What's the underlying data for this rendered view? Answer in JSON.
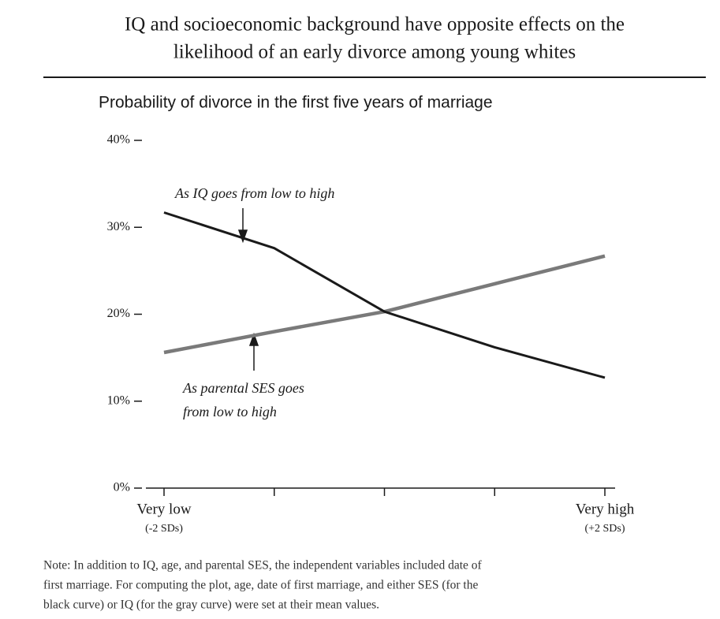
{
  "chart_data": {
    "type": "line",
    "title": [
      "IQ and socioeconomic background have opposite effects on the",
      "likelihood of an early divorce among young whites"
    ],
    "subtitle": "Probability of divorce in the first five years of marriage",
    "x": [
      -2,
      -1,
      0,
      1,
      2
    ],
    "xlim": [
      -2,
      2
    ],
    "xticks": [
      {
        "value": -2,
        "label": "Very low",
        "sublabel": "(-2 SDs)"
      },
      {
        "value": -1,
        "label": null
      },
      {
        "value": 0,
        "label": null
      },
      {
        "value": 1,
        "label": null
      },
      {
        "value": 2,
        "label": "Very high",
        "sublabel": "(+2 SDs)"
      }
    ],
    "ylim": [
      0,
      40
    ],
    "yticks": [
      {
        "value": 0,
        "label": "0%"
      },
      {
        "value": 10,
        "label": "10%"
      },
      {
        "value": 20,
        "label": "20%"
      },
      {
        "value": 30,
        "label": "30%"
      },
      {
        "value": 40,
        "label": "40%"
      }
    ],
    "series": [
      {
        "name": "As IQ goes from low to high",
        "color": "#1a1a1a",
        "values": [
          31.7,
          27.6,
          20.3,
          16.2,
          12.7
        ]
      },
      {
        "name": [
          "As parental SES goes",
          "from low to high"
        ],
        "color": "#7a7a7a",
        "values": [
          15.6,
          18.0,
          20.3,
          23.5,
          26.7
        ]
      }
    ],
    "note": [
      "Note: In addition to IQ, age, and parental SES, the independent variables included date of",
      "first marriage. For computing the plot, age, date of first marriage, and either SES (for the",
      "black curve) or IQ (for the gray curve) were set at their mean values."
    ]
  }
}
